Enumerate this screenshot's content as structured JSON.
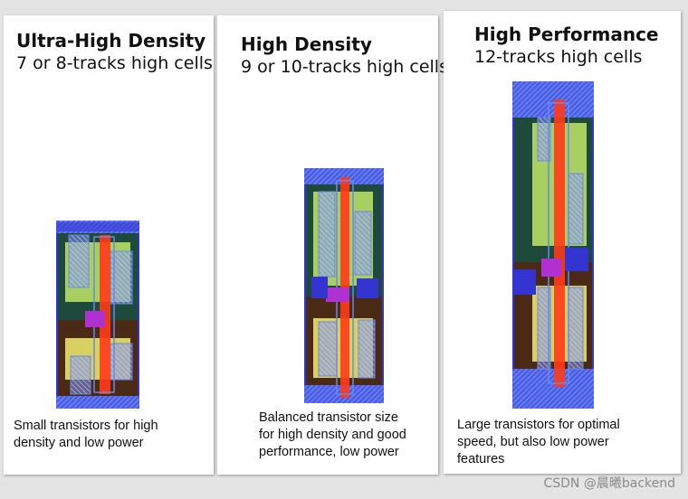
{
  "panels": [
    {
      "title": "Ultra-High Density",
      "subtitle": "7 or 8-tracks high cells",
      "caption": [
        "Small transistors for high",
        "density and low power"
      ]
    },
    {
      "title": "High Density",
      "subtitle": "9 or 10-tracks high cells",
      "caption": [
        "Balanced transistor size",
        "for high density and good",
        "performance, low power"
      ]
    },
    {
      "title": "High Performance",
      "subtitle": "12-tracks high cells",
      "caption": [
        "Large transistors for optimal",
        "speed, but also low power",
        "features"
      ]
    }
  ],
  "watermark": "CSDN @晨曦backend",
  "colors": {
    "rail_blue": "#3434d0",
    "nwell_dark": "#1d4a3a",
    "pwell_brown": "#4a2a14",
    "diffusion_green": "#a8d060",
    "diffusion_yellow": "#d8d060",
    "poly_red": "#ff3a1a",
    "metal_blue": "#6a88e8",
    "contact_magenta": "#b030d0"
  }
}
